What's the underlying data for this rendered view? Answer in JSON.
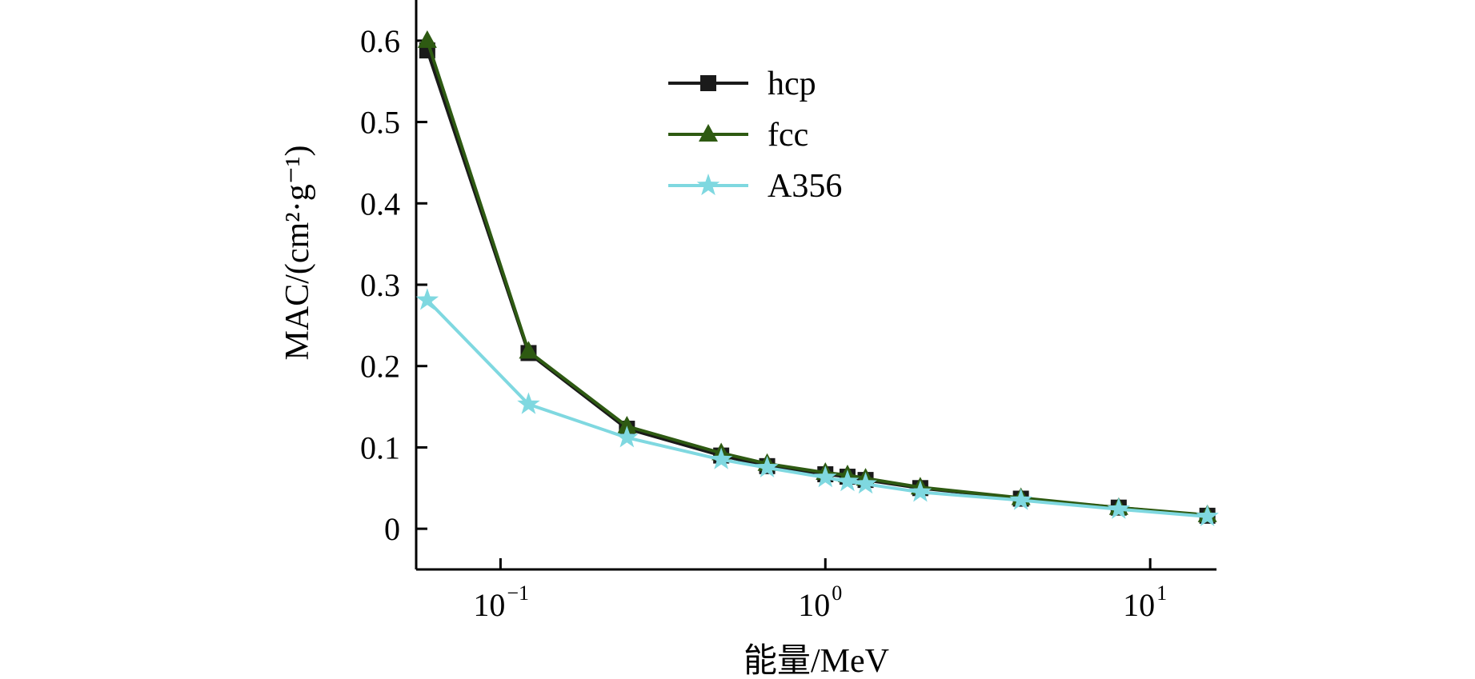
{
  "chart_data": {
    "type": "line",
    "xscale": "log",
    "xlabel": "能量/MeV",
    "ylabel": "MAC/(cm²·g⁻¹)",
    "xlim": [
      0.055,
      16
    ],
    "ylim": [
      -0.05,
      0.65
    ],
    "grid": false,
    "legend_position": "top-center",
    "x_ticks": [
      {
        "value": 0.1,
        "label": "10",
        "sup": "−1"
      },
      {
        "value": 1,
        "label": "10",
        "sup": "0"
      },
      {
        "value": 10,
        "label": "10",
        "sup": "1"
      }
    ],
    "y_ticks": [
      {
        "value": 0,
        "label": "0"
      },
      {
        "value": 0.1,
        "label": "0.1"
      },
      {
        "value": 0.2,
        "label": "0.2"
      },
      {
        "value": 0.3,
        "label": "0.3"
      },
      {
        "value": 0.4,
        "label": "0.4"
      },
      {
        "value": 0.5,
        "label": "0.5"
      },
      {
        "value": 0.6,
        "label": "0.6"
      }
    ],
    "series": [
      {
        "name": "hcp",
        "color": "#1a1a1a",
        "marker": "square",
        "x": [
          0.0595,
          0.122,
          0.245,
          0.478,
          0.662,
          1.0,
          1.17,
          1.33,
          1.96,
          4.0,
          8.0,
          15.0
        ],
        "y": [
          0.588,
          0.216,
          0.123,
          0.09,
          0.077,
          0.067,
          0.064,
          0.06,
          0.05,
          0.037,
          0.026,
          0.016
        ]
      },
      {
        "name": "fcc",
        "color": "#2e5a12",
        "marker": "triangle",
        "x": [
          0.0595,
          0.122,
          0.245,
          0.478,
          0.662,
          1.0,
          1.17,
          1.33,
          1.96,
          4.0,
          8.0,
          15.0
        ],
        "y": [
          0.6,
          0.218,
          0.126,
          0.093,
          0.08,
          0.069,
          0.066,
          0.062,
          0.051,
          0.038,
          0.026,
          0.017
        ]
      },
      {
        "name": "A356",
        "color": "#7fd8e0",
        "marker": "star",
        "x": [
          0.0595,
          0.122,
          0.245,
          0.478,
          0.662,
          1.0,
          1.17,
          1.33,
          1.96,
          4.0,
          8.0,
          15.0
        ],
        "y": [
          0.281,
          0.153,
          0.112,
          0.085,
          0.075,
          0.063,
          0.058,
          0.055,
          0.045,
          0.035,
          0.024,
          0.015
        ]
      }
    ]
  }
}
